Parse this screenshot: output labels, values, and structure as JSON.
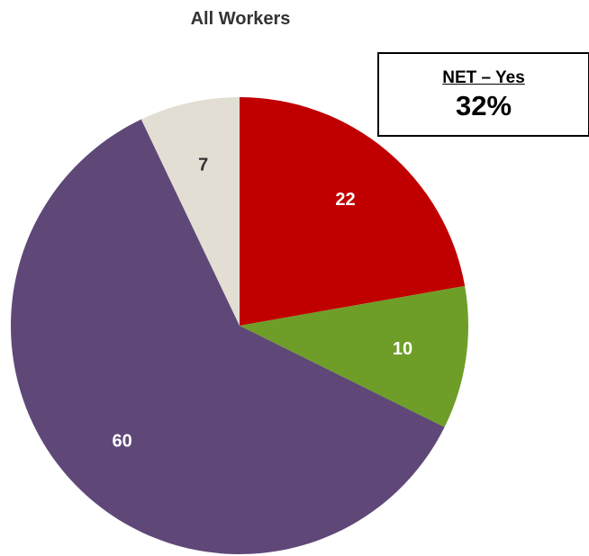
{
  "chart_data": {
    "type": "pie",
    "title": "All Workers",
    "slices": [
      {
        "value": 22,
        "label": "22",
        "color": "#c00000",
        "label_color": "#ffffff"
      },
      {
        "value": 10,
        "label": "10",
        "color": "#6e9e28",
        "label_color": "#ffffff"
      },
      {
        "value": 60,
        "label": "60",
        "color": "#5f4878",
        "label_color": "#ffffff"
      },
      {
        "value": 7,
        "label": "7",
        "color": "#e3ded3",
        "label_color": "#333333"
      }
    ],
    "start_angle": "12 o'clock",
    "direction": "clockwise"
  },
  "net_box": {
    "label": "NET – Yes",
    "value": "32%"
  }
}
